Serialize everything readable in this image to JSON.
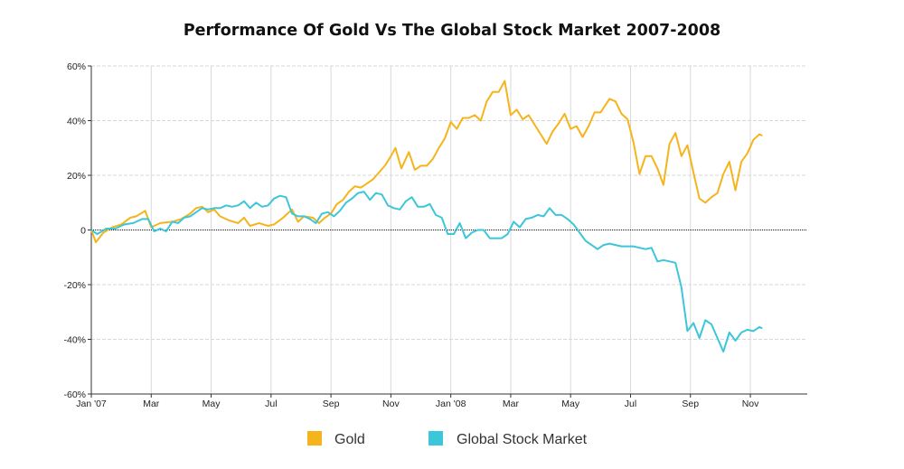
{
  "chart_data": {
    "type": "line",
    "title": "Performance Of Gold Vs The Global Stock Market 2007-2008",
    "xlabel": "",
    "ylabel": "",
    "ylim": [
      -60,
      60
    ],
    "xlim": [
      0,
      23.9
    ],
    "y_ticks": [
      {
        "value": 60,
        "label": "60%"
      },
      {
        "value": 40,
        "label": "40%"
      },
      {
        "value": 20,
        "label": "20%"
      },
      {
        "value": 0,
        "label": "0"
      },
      {
        "value": -20,
        "label": "-20%"
      },
      {
        "value": -40,
        "label": "-40%"
      },
      {
        "value": -60,
        "label": "-60%"
      }
    ],
    "x_ticks": [
      {
        "value": 0,
        "label": "Jan '07"
      },
      {
        "value": 2,
        "label": "Mar"
      },
      {
        "value": 4,
        "label": "May"
      },
      {
        "value": 6,
        "label": "Jul"
      },
      {
        "value": 8,
        "label": "Sep"
      },
      {
        "value": 10,
        "label": "Nov"
      },
      {
        "value": 12,
        "label": "Jan '08"
      },
      {
        "value": 14,
        "label": "Mar"
      },
      {
        "value": 16,
        "label": "May"
      },
      {
        "value": 18,
        "label": "Jul"
      },
      {
        "value": 20,
        "label": "Sep"
      },
      {
        "value": 22,
        "label": "Nov"
      }
    ],
    "grid": true,
    "legend_position": "bottom-center",
    "series": [
      {
        "name": "Gold",
        "color": "#f5b41c",
        "points": [
          [
            0,
            0
          ],
          [
            0.15,
            -4.5
          ],
          [
            0.4,
            -1
          ],
          [
            0.7,
            1
          ],
          [
            1,
            2
          ],
          [
            1.3,
            4.5
          ],
          [
            1.5,
            5
          ],
          [
            1.8,
            7
          ],
          [
            2,
            1
          ],
          [
            2.3,
            2.5
          ],
          [
            2.7,
            3
          ],
          [
            3,
            4
          ],
          [
            3.3,
            6
          ],
          [
            3.5,
            8
          ],
          [
            3.7,
            8.5
          ],
          [
            3.9,
            6.5
          ],
          [
            4.1,
            7.5
          ],
          [
            4.3,
            5
          ],
          [
            4.6,
            3.5
          ],
          [
            4.9,
            2.5
          ],
          [
            5.1,
            4.5
          ],
          [
            5.3,
            1.5
          ],
          [
            5.6,
            2.5
          ],
          [
            5.9,
            1.5
          ],
          [
            6.1,
            2
          ],
          [
            6.4,
            4.5
          ],
          [
            6.7,
            7.5
          ],
          [
            6.9,
            3
          ],
          [
            7.1,
            5
          ],
          [
            7.4,
            4.5
          ],
          [
            7.6,
            2.5
          ],
          [
            7.8,
            4.5
          ],
          [
            8,
            6
          ],
          [
            8.2,
            9.5
          ],
          [
            8.4,
            11
          ],
          [
            8.6,
            14
          ],
          [
            8.8,
            16
          ],
          [
            9,
            15.5
          ],
          [
            9.2,
            17
          ],
          [
            9.4,
            18.5
          ],
          [
            9.6,
            21
          ],
          [
            9.8,
            23.5
          ],
          [
            10,
            27
          ],
          [
            10.15,
            30
          ],
          [
            10.35,
            22.5
          ],
          [
            10.6,
            28.5
          ],
          [
            10.8,
            22
          ],
          [
            11,
            23.5
          ],
          [
            11.2,
            23.5
          ],
          [
            11.4,
            26
          ],
          [
            11.6,
            30
          ],
          [
            11.8,
            33.5
          ],
          [
            12,
            39.5
          ],
          [
            12.2,
            37
          ],
          [
            12.4,
            41
          ],
          [
            12.6,
            41
          ],
          [
            12.8,
            42
          ],
          [
            13,
            40
          ],
          [
            13.2,
            47
          ],
          [
            13.4,
            50.5
          ],
          [
            13.6,
            50.5
          ],
          [
            13.8,
            54.5
          ],
          [
            14,
            42
          ],
          [
            14.2,
            44
          ],
          [
            14.4,
            40.5
          ],
          [
            14.6,
            42
          ],
          [
            14.8,
            38.5
          ],
          [
            15,
            35
          ],
          [
            15.2,
            31.5
          ],
          [
            15.4,
            36
          ],
          [
            15.6,
            39
          ],
          [
            15.8,
            42.5
          ],
          [
            16,
            37
          ],
          [
            16.2,
            38
          ],
          [
            16.4,
            34
          ],
          [
            16.6,
            38
          ],
          [
            16.8,
            43
          ],
          [
            17,
            43
          ],
          [
            17.3,
            48
          ],
          [
            17.5,
            47
          ],
          [
            17.7,
            42.5
          ],
          [
            17.9,
            40.5
          ],
          [
            18.1,
            32
          ],
          [
            18.3,
            20.5
          ],
          [
            18.5,
            27
          ],
          [
            18.7,
            27
          ],
          [
            18.9,
            22.5
          ],
          [
            19.1,
            16.5
          ],
          [
            19.3,
            31.5
          ],
          [
            19.5,
            35.5
          ],
          [
            19.7,
            27
          ],
          [
            19.9,
            31
          ],
          [
            20.1,
            21
          ],
          [
            20.3,
            11.5
          ],
          [
            20.5,
            10
          ],
          [
            20.7,
            12
          ],
          [
            20.9,
            13.5
          ],
          [
            21.1,
            20.5
          ],
          [
            21.3,
            25
          ],
          [
            21.5,
            14.5
          ],
          [
            21.7,
            25
          ],
          [
            21.9,
            28
          ],
          [
            22.1,
            33
          ],
          [
            22.3,
            35
          ],
          [
            22.4,
            34.5
          ]
        ]
      },
      {
        "name": "Global Stock Market",
        "color": "#3cc6da",
        "points": [
          [
            0,
            0
          ],
          [
            0.2,
            -1.5
          ],
          [
            0.5,
            0.5
          ],
          [
            0.8,
            0.5
          ],
          [
            1.1,
            2
          ],
          [
            1.4,
            2.5
          ],
          [
            1.7,
            4
          ],
          [
            1.9,
            4
          ],
          [
            2.1,
            -0.5
          ],
          [
            2.3,
            0.5
          ],
          [
            2.5,
            -0.5
          ],
          [
            2.7,
            3
          ],
          [
            2.9,
            2.5
          ],
          [
            3.1,
            4.5
          ],
          [
            3.3,
            5
          ],
          [
            3.5,
            6.5
          ],
          [
            3.7,
            8
          ],
          [
            3.9,
            7.5
          ],
          [
            4.1,
            8
          ],
          [
            4.3,
            8
          ],
          [
            4.5,
            9
          ],
          [
            4.7,
            8.5
          ],
          [
            4.9,
            9
          ],
          [
            5.1,
            10.5
          ],
          [
            5.3,
            8
          ],
          [
            5.5,
            10
          ],
          [
            5.7,
            8.5
          ],
          [
            5.9,
            9
          ],
          [
            6.1,
            11.5
          ],
          [
            6.3,
            12.5
          ],
          [
            6.5,
            12
          ],
          [
            6.7,
            6
          ],
          [
            6.9,
            5
          ],
          [
            7.1,
            5
          ],
          [
            7.3,
            4
          ],
          [
            7.5,
            2.5
          ],
          [
            7.7,
            6
          ],
          [
            7.9,
            6.5
          ],
          [
            8.1,
            5
          ],
          [
            8.3,
            7
          ],
          [
            8.5,
            10
          ],
          [
            8.7,
            11.5
          ],
          [
            8.9,
            13.5
          ],
          [
            9.1,
            14
          ],
          [
            9.3,
            11
          ],
          [
            9.5,
            13.5
          ],
          [
            9.7,
            13
          ],
          [
            9.9,
            9
          ],
          [
            10.1,
            8
          ],
          [
            10.3,
            7.5
          ],
          [
            10.5,
            10.5
          ],
          [
            10.7,
            12
          ],
          [
            10.9,
            8.5
          ],
          [
            11.1,
            8.5
          ],
          [
            11.3,
            9.5
          ],
          [
            11.5,
            5.5
          ],
          [
            11.7,
            4.5
          ],
          [
            11.9,
            -1.5
          ],
          [
            12.1,
            -1.5
          ],
          [
            12.3,
            2.5
          ],
          [
            12.5,
            -3
          ],
          [
            12.7,
            -1
          ],
          [
            12.9,
            0
          ],
          [
            13.1,
            0
          ],
          [
            13.3,
            -3
          ],
          [
            13.5,
            -3
          ],
          [
            13.7,
            -3
          ],
          [
            13.9,
            -1.5
          ],
          [
            14.1,
            3
          ],
          [
            14.3,
            1
          ],
          [
            14.5,
            4
          ],
          [
            14.7,
            4.5
          ],
          [
            14.9,
            5.5
          ],
          [
            15.1,
            5
          ],
          [
            15.3,
            8
          ],
          [
            15.5,
            5.5
          ],
          [
            15.7,
            5.5
          ],
          [
            15.9,
            4
          ],
          [
            16.1,
            2
          ],
          [
            16.3,
            -1
          ],
          [
            16.5,
            -4
          ],
          [
            16.7,
            -5.5
          ],
          [
            16.9,
            -7
          ],
          [
            17.1,
            -5.5
          ],
          [
            17.3,
            -5
          ],
          [
            17.5,
            -5.5
          ],
          [
            17.7,
            -6
          ],
          [
            17.9,
            -6
          ],
          [
            18.1,
            -6
          ],
          [
            18.3,
            -6.5
          ],
          [
            18.5,
            -7
          ],
          [
            18.7,
            -6.5
          ],
          [
            18.9,
            -11.5
          ],
          [
            19.1,
            -11
          ],
          [
            19.3,
            -11.5
          ],
          [
            19.5,
            -12
          ],
          [
            19.7,
            -21
          ],
          [
            19.9,
            -37
          ],
          [
            20.1,
            -34
          ],
          [
            20.3,
            -39.5
          ],
          [
            20.5,
            -33
          ],
          [
            20.7,
            -34.5
          ],
          [
            20.9,
            -39.5
          ],
          [
            21.1,
            -44.5
          ],
          [
            21.3,
            -37.5
          ],
          [
            21.5,
            -40.5
          ],
          [
            21.7,
            -37.5
          ],
          [
            21.9,
            -36.5
          ],
          [
            22.1,
            -37
          ],
          [
            22.3,
            -35.5
          ],
          [
            22.4,
            -36
          ]
        ]
      }
    ]
  }
}
